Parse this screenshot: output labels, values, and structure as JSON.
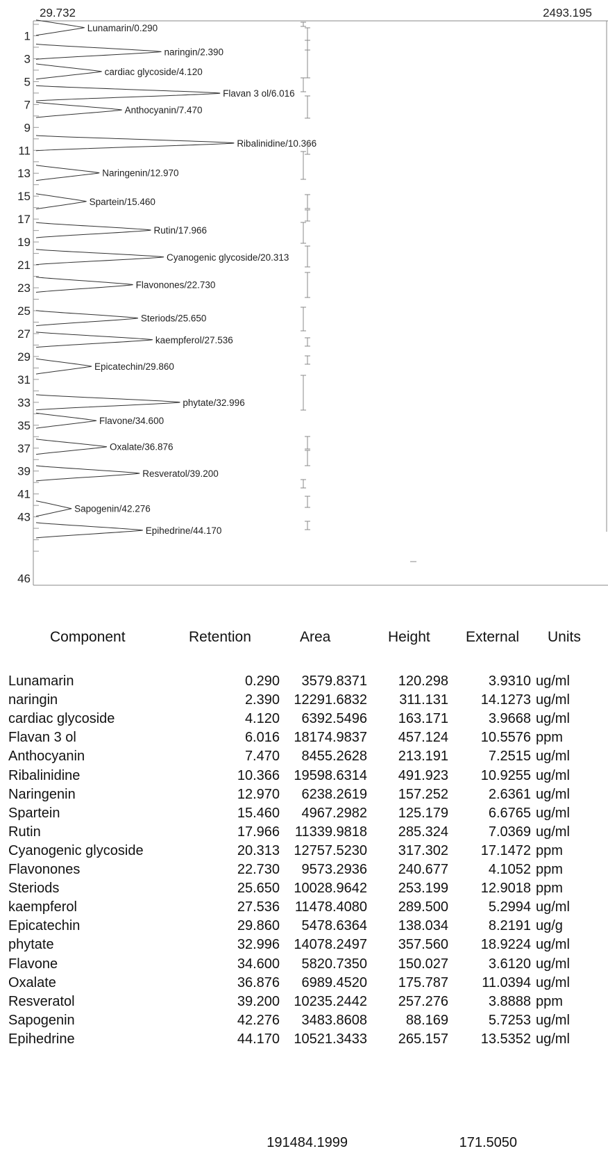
{
  "chart_data": {
    "type": "line",
    "orientation": "vertical",
    "range_labels": {
      "min": "29.732",
      "max": "2493.195"
    },
    "y_ticks": [
      "1",
      "3",
      "5",
      "7",
      "9",
      "11",
      "13",
      "15",
      "17",
      "19",
      "21",
      "23",
      "25",
      "27",
      "29",
      "31",
      "33",
      "35",
      "37",
      "39",
      "41",
      "43",
      "46"
    ],
    "ylim": [
      0,
      47
    ],
    "xlim": [
      29.732,
      2493.195
    ],
    "peaks": [
      {
        "label": "Lunamarin/0.290",
        "time": 0.29,
        "height": 120.298
      },
      {
        "label": "naringin/2.390",
        "time": 2.39,
        "height": 311.131
      },
      {
        "label": "cardiac glycoside/4.120",
        "time": 4.12,
        "height": 163.171
      },
      {
        "label": "Flavan 3 ol/6.016",
        "time": 6.016,
        "height": 457.124
      },
      {
        "label": "Anthocyanin/7.470",
        "time": 7.47,
        "height": 213.191
      },
      {
        "label": "Ribalinidine/10.366",
        "time": 10.366,
        "height": 491.923
      },
      {
        "label": "Naringenin/12.970",
        "time": 12.97,
        "height": 157.252
      },
      {
        "label": "Spartein/15.460",
        "time": 15.46,
        "height": 125.179
      },
      {
        "label": "Rutin/17.966",
        "time": 17.966,
        "height": 285.324
      },
      {
        "label": "Cyanogenic glycoside/20.313",
        "time": 20.313,
        "height": 317.302
      },
      {
        "label": "Flavonones/22.730",
        "time": 22.73,
        "height": 240.677
      },
      {
        "label": "Steriods/25.650",
        "time": 25.65,
        "height": 253.199
      },
      {
        "label": "kaempferol/27.536",
        "time": 27.536,
        "height": 289.5
      },
      {
        "label": "Epicatechin/29.860",
        "time": 29.86,
        "height": 138.034
      },
      {
        "label": "phytate/32.996",
        "time": 32.996,
        "height": 357.56
      },
      {
        "label": "Flavone/34.600",
        "time": 34.6,
        "height": 150.027
      },
      {
        "label": "Oxalate/36.876",
        "time": 36.876,
        "height": 175.787
      },
      {
        "label": "Resveratol/39.200",
        "time": 39.2,
        "height": 257.276
      },
      {
        "label": "Sapogenin/42.276",
        "time": 42.276,
        "height": 88.169
      },
      {
        "label": "Epihedrine/44.170",
        "time": 44.17,
        "height": 265.157
      }
    ]
  },
  "table": {
    "headers": {
      "component": "Component",
      "retention": "Retention",
      "area": "Area",
      "height": "Height",
      "external": "External",
      "units": "Units"
    },
    "rows": [
      {
        "component": "Lunamarin",
        "retention": "0.290",
        "area": "3579.8371",
        "height": "120.298",
        "external": "3.9310",
        "units": "ug/ml"
      },
      {
        "component": "naringin",
        "retention": "2.390",
        "area": "12291.6832",
        "height": "311.131",
        "external": "14.1273",
        "units": "ug/ml"
      },
      {
        "component": "cardiac glycoside",
        "retention": "4.120",
        "area": "6392.5496",
        "height": "163.171",
        "external": "3.9668",
        "units": "ug/ml"
      },
      {
        "component": "Flavan 3 ol",
        "retention": "6.016",
        "area": "18174.9837",
        "height": "457.124",
        "external": "10.5576",
        "units": "ppm"
      },
      {
        "component": "Anthocyanin",
        "retention": "7.470",
        "area": "8455.2628",
        "height": "213.191",
        "external": "7.2515",
        "units": "ug/ml"
      },
      {
        "component": "Ribalinidine",
        "retention": "10.366",
        "area": "19598.6314",
        "height": "491.923",
        "external": "10.9255",
        "units": "ug/ml"
      },
      {
        "component": "Naringenin",
        "retention": "12.970",
        "area": "6238.2619",
        "height": "157.252",
        "external": "2.6361",
        "units": "ug/ml"
      },
      {
        "component": "Spartein",
        "retention": "15.460",
        "area": "4967.2982",
        "height": "125.179",
        "external": "6.6765",
        "units": "ug/ml"
      },
      {
        "component": "Rutin",
        "retention": "17.966",
        "area": "11339.9818",
        "height": "285.324",
        "external": "7.0369",
        "units": "ug/ml"
      },
      {
        "component": "Cyanogenic glycoside",
        "retention": "20.313",
        "area": "12757.5230",
        "height": "317.302",
        "external": "17.1472",
        "units": "ppm"
      },
      {
        "component": "Flavonones",
        "retention": "22.730",
        "area": "9573.2936",
        "height": "240.677",
        "external": "4.1052",
        "units": "ppm"
      },
      {
        "component": "Steriods",
        "retention": "25.650",
        "area": "10028.9642",
        "height": "253.199",
        "external": "12.9018",
        "units": "ppm"
      },
      {
        "component": "kaempferol",
        "retention": "27.536",
        "area": "11478.4080",
        "height": "289.500",
        "external": "5.2994",
        "units": "ug/ml"
      },
      {
        "component": "Epicatechin",
        "retention": "29.860",
        "area": "5478.6364",
        "height": "138.034",
        "external": "8.2191",
        "units": "ug/g"
      },
      {
        "component": "phytate",
        "retention": "32.996",
        "area": "14078.2497",
        "height": "357.560",
        "external": "18.9224",
        "units": "ug/ml"
      },
      {
        "component": "Flavone",
        "retention": "34.600",
        "area": "5820.7350",
        "height": "150.027",
        "external": "3.6120",
        "units": "ug/ml"
      },
      {
        "component": "Oxalate",
        "retention": "36.876",
        "area": "6989.4520",
        "height": "175.787",
        "external": "11.0394",
        "units": "ug/ml"
      },
      {
        "component": "Resveratol",
        "retention": "39.200",
        "area": "10235.2442",
        "height": "257.276",
        "external": "3.8888",
        "units": "ppm"
      },
      {
        "component": "Sapogenin",
        "retention": "42.276",
        "area": "3483.8608",
        "height": "88.169",
        "external": "5.7253",
        "units": "ug/ml"
      },
      {
        "component": "Epihedrine",
        "retention": "44.170",
        "area": "10521.3433",
        "height": "265.157",
        "external": "13.5352",
        "units": "ug/ml"
      }
    ],
    "totals": {
      "area": "191484.1999",
      "external": "171.5050"
    }
  }
}
